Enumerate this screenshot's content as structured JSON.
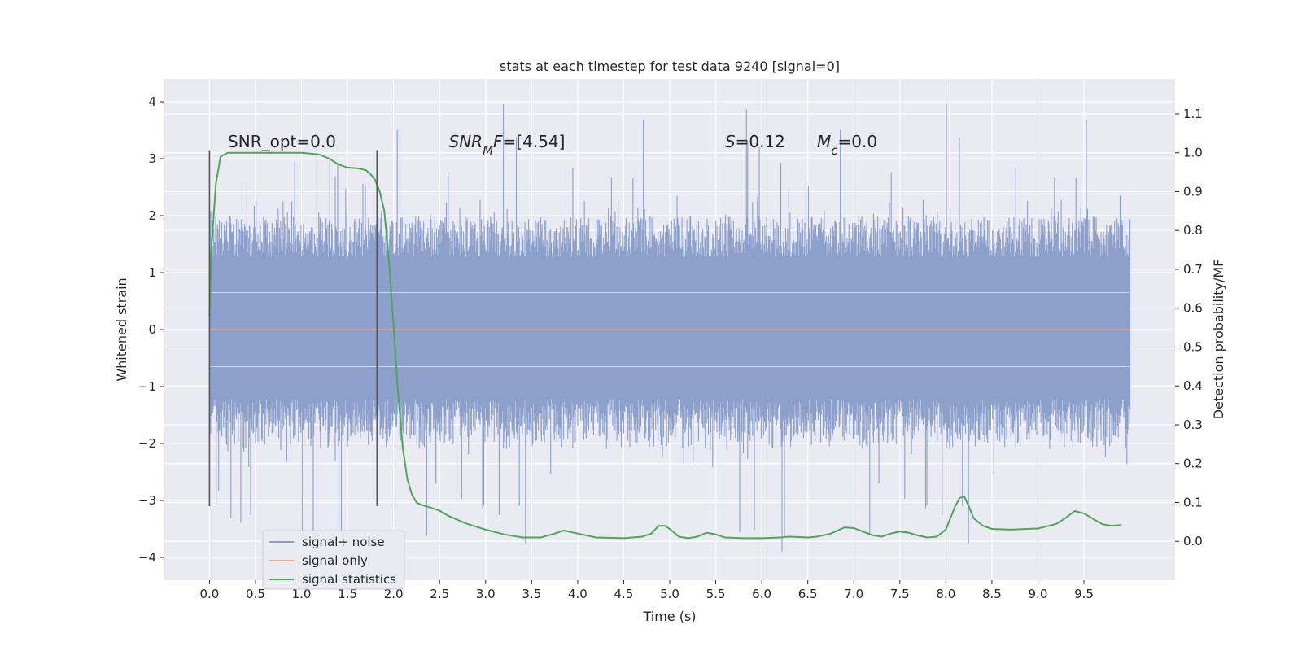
{
  "chart_data": {
    "type": "line",
    "title": "stats at each timestep for test data 9240 [signal=0]",
    "xlabel": "Time (s)",
    "ylabel": "Whitened strain",
    "y2label": "Detection probability/MF",
    "xlim": [
      -0.49,
      10.49
    ],
    "ylim": [
      -4.4,
      4.4
    ],
    "y2lim": [
      -0.1,
      1.19
    ],
    "xticks": [
      0.0,
      0.5,
      1.0,
      1.5,
      2.0,
      2.5,
      3.0,
      3.5,
      4.0,
      4.5,
      5.0,
      5.5,
      6.0,
      6.5,
      7.0,
      7.5,
      8.0,
      8.5,
      9.0,
      9.5
    ],
    "xtick_labels": [
      "0.0",
      "0.5",
      "1.0",
      "1.5",
      "2.0",
      "2.5",
      "3.0",
      "3.5",
      "4.0",
      "4.5",
      "5.0",
      "5.5",
      "6.0",
      "6.5",
      "7.0",
      "7.5",
      "8.0",
      "8.5",
      "9.0",
      "9.5"
    ],
    "yticks": [
      4,
      3,
      2,
      1,
      0,
      -1,
      -2,
      -3,
      -4
    ],
    "ytick_labels": [
      "4",
      "3",
      "2",
      "1",
      "0",
      "−1",
      "−2",
      "−3",
      "−4"
    ],
    "y2ticks": [
      1.1,
      1.0,
      0.9,
      0.8,
      0.7,
      0.6,
      0.5,
      0.4,
      0.3,
      0.2,
      0.1,
      0.0
    ],
    "y2tick_labels": [
      "1.1",
      "1.0",
      "0.9",
      "0.8",
      "0.7",
      "0.6",
      "0.5",
      "0.4",
      "0.3",
      "0.2",
      "0.1",
      "0.0"
    ],
    "grid": true,
    "legend_position": "lower-left",
    "vlines": [
      {
        "x": 0.0,
        "ymin": -3.1,
        "ymax": 3.15
      },
      {
        "x": 1.82,
        "ymin": -3.1,
        "ymax": 3.15
      }
    ],
    "annotations": [
      {
        "parts": [
          {
            "text": "SNR_opt=0.0",
            "italic": false
          }
        ],
        "x": 0.2,
        "y": 3.2
      },
      {
        "parts": [
          {
            "text": "SNR",
            "italic": true
          },
          {
            "text": "M",
            "italic": true,
            "sub": true
          },
          {
            "text": "F",
            "italic": true
          },
          {
            "text": "=[4.54]",
            "italic": false
          }
        ],
        "x": 2.6,
        "y": 3.2
      },
      {
        "parts": [
          {
            "text": "S",
            "italic": true
          },
          {
            "text": "=0.12",
            "italic": false
          }
        ],
        "x": 5.6,
        "y": 3.2
      },
      {
        "parts": [
          {
            "text": "M",
            "italic": true
          },
          {
            "text": "c",
            "italic": true,
            "sub": true
          },
          {
            "text": "=0.0",
            "italic": false
          }
        ],
        "x": 6.6,
        "y": 3.2
      }
    ],
    "series": [
      {
        "name": "signal+ noise",
        "color": "#8da0cb",
        "axis": "left",
        "kind": "noise",
        "x_range": [
          0.0,
          10.0
        ],
        "band_envelope": {
          "core_sigma": 0.75,
          "typical_max": 2.0,
          "peak_max": 4.05,
          "peak_min": -3.98
        }
      },
      {
        "name": "signal only",
        "color": "#e8a88c",
        "axis": "left",
        "x": [
          0.0,
          10.0
        ],
        "y": [
          0.0,
          0.0
        ]
      },
      {
        "name": "signal statistics",
        "color": "#4ea65a",
        "axis": "right",
        "x": [
          0.0,
          0.02,
          0.07,
          0.12,
          0.2,
          0.35,
          0.5,
          0.7,
          0.9,
          1.0,
          1.1,
          1.2,
          1.3,
          1.4,
          1.5,
          1.6,
          1.65,
          1.7,
          1.75,
          1.8,
          1.85,
          1.9,
          1.95,
          2.0,
          2.05,
          2.1,
          2.15,
          2.2,
          2.25,
          2.3,
          2.4,
          2.5,
          2.6,
          2.8,
          3.0,
          3.2,
          3.4,
          3.6,
          3.75,
          3.85,
          4.0,
          4.2,
          4.5,
          4.7,
          4.8,
          4.88,
          4.95,
          5.0,
          5.1,
          5.2,
          5.3,
          5.4,
          5.5,
          5.6,
          5.8,
          6.0,
          6.2,
          6.3,
          6.5,
          6.6,
          6.75,
          6.9,
          7.0,
          7.1,
          7.2,
          7.3,
          7.4,
          7.5,
          7.6,
          7.7,
          7.8,
          7.9,
          8.0,
          8.05,
          8.1,
          8.15,
          8.2,
          8.25,
          8.3,
          8.4,
          8.5,
          8.7,
          9.0,
          9.2,
          9.3,
          9.4,
          9.5,
          9.6,
          9.7,
          9.8,
          9.9
        ],
        "y": [
          0.58,
          0.75,
          0.92,
          0.99,
          1.0,
          1.0,
          1.0,
          1.0,
          1.0,
          1.0,
          0.998,
          0.995,
          0.985,
          0.97,
          0.962,
          0.96,
          0.958,
          0.955,
          0.945,
          0.93,
          0.9,
          0.85,
          0.72,
          0.55,
          0.38,
          0.24,
          0.16,
          0.12,
          0.1,
          0.094,
          0.087,
          0.079,
          0.065,
          0.045,
          0.03,
          0.018,
          0.01,
          0.01,
          0.02,
          0.028,
          0.02,
          0.01,
          0.008,
          0.012,
          0.02,
          0.04,
          0.04,
          0.032,
          0.012,
          0.008,
          0.012,
          0.022,
          0.018,
          0.01,
          0.008,
          0.008,
          0.01,
          0.012,
          0.01,
          0.012,
          0.02,
          0.036,
          0.034,
          0.025,
          0.016,
          0.012,
          0.02,
          0.025,
          0.022,
          0.015,
          0.01,
          0.012,
          0.03,
          0.06,
          0.09,
          0.112,
          0.115,
          0.09,
          0.06,
          0.04,
          0.032,
          0.03,
          0.033,
          0.045,
          0.06,
          0.078,
          0.072,
          0.058,
          0.044,
          0.04,
          0.042
        ]
      }
    ]
  }
}
